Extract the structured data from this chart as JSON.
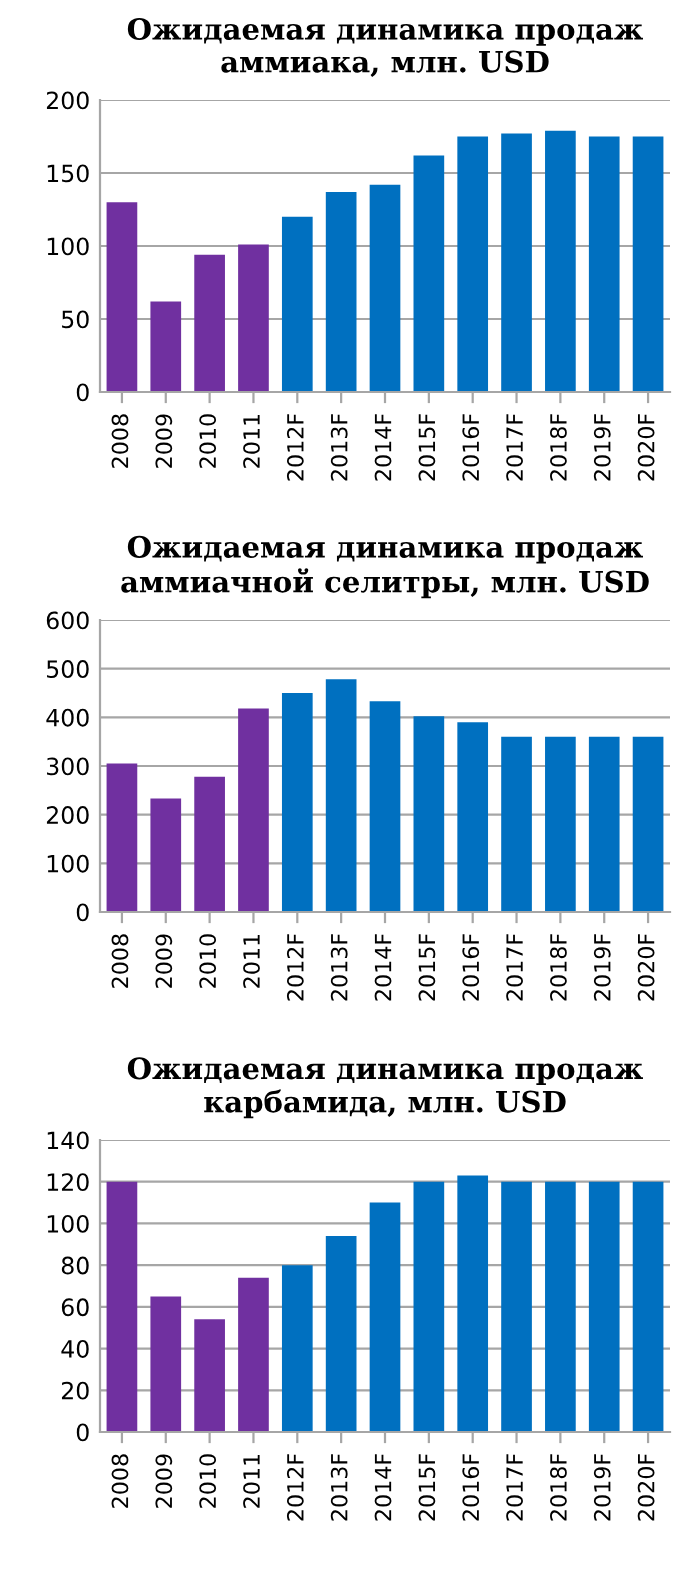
{
  "chart_data": [
    {
      "type": "bar",
      "title": "Ожидаемая динамика продаж\nаммиака, млн. USD",
      "categories": [
        "2008",
        "2009",
        "2010",
        "2011",
        "2012F",
        "2013F",
        "2014F",
        "2015F",
        "2016F",
        "2017F",
        "2018F",
        "2019F",
        "2020F"
      ],
      "values": [
        130,
        62,
        94,
        101,
        120,
        137,
        142,
        162,
        175,
        177,
        179,
        175,
        175
      ],
      "colors": [
        "#7030a0",
        "#7030a0",
        "#7030a0",
        "#7030a0",
        "#0070c0",
        "#0070c0",
        "#0070c0",
        "#0070c0",
        "#0070c0",
        "#0070c0",
        "#0070c0",
        "#0070c0",
        "#0070c0"
      ],
      "ylim": [
        0,
        200
      ],
      "yticks": [
        0,
        50,
        100,
        150,
        200
      ],
      "grid": "y"
    },
    {
      "type": "bar",
      "title": "Ожидаемая динамика продаж\nаммиачной селитры, млн. USD",
      "categories": [
        "2008",
        "2009",
        "2010",
        "2011",
        "2012F",
        "2013F",
        "2014F",
        "2015F",
        "2016F",
        "2017F",
        "2018F",
        "2019F",
        "2020F"
      ],
      "values": [
        305,
        233,
        278,
        418,
        450,
        478,
        433,
        402,
        390,
        360,
        360,
        360,
        360
      ],
      "colors": [
        "#7030a0",
        "#7030a0",
        "#7030a0",
        "#7030a0",
        "#0070c0",
        "#0070c0",
        "#0070c0",
        "#0070c0",
        "#0070c0",
        "#0070c0",
        "#0070c0",
        "#0070c0",
        "#0070c0"
      ],
      "ylim": [
        0,
        600
      ],
      "yticks": [
        0,
        100,
        200,
        300,
        400,
        500,
        600
      ],
      "grid": "y"
    },
    {
      "type": "bar",
      "title": "Ожидаемая динамика продаж\nкарбамида, млн. USD",
      "categories": [
        "2008",
        "2009",
        "2010",
        "2011",
        "2012F",
        "2013F",
        "2014F",
        "2015F",
        "2016F",
        "2017F",
        "2018F",
        "2019F",
        "2020F"
      ],
      "values": [
        120,
        65,
        54,
        74,
        80,
        94,
        110,
        120,
        123,
        120,
        120,
        120,
        120
      ],
      "colors": [
        "#7030a0",
        "#7030a0",
        "#7030a0",
        "#7030a0",
        "#0070c0",
        "#0070c0",
        "#0070c0",
        "#0070c0",
        "#0070c0",
        "#0070c0",
        "#0070c0",
        "#0070c0",
        "#0070c0"
      ],
      "ylim": [
        0,
        140
      ],
      "yticks": [
        0,
        20,
        40,
        60,
        80,
        100,
        120,
        140
      ],
      "grid": "y"
    }
  ]
}
